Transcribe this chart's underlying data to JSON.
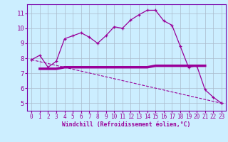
{
  "xlabel": "Windchill (Refroidissement éolien,°C)",
  "background_color": "#cceeff",
  "grid_color": "#aabbcc",
  "line_color": "#990099",
  "spine_color": "#7700aa",
  "xlim": [
    -0.5,
    23.5
  ],
  "ylim": [
    4.5,
    11.6
  ],
  "yticks": [
    5,
    6,
    7,
    8,
    9,
    10,
    11
  ],
  "xticks": [
    0,
    1,
    2,
    3,
    4,
    5,
    6,
    7,
    8,
    9,
    10,
    11,
    12,
    13,
    14,
    15,
    16,
    17,
    18,
    19,
    20,
    21,
    22,
    23
  ],
  "series1_x": [
    0,
    1,
    2,
    3,
    4,
    5,
    6,
    7,
    8,
    9,
    10,
    11,
    12,
    13,
    14,
    15,
    16,
    17,
    18,
    19,
    20,
    21,
    22,
    23
  ],
  "series1_y": [
    7.9,
    8.2,
    7.4,
    7.8,
    9.3,
    9.5,
    9.7,
    9.4,
    9.0,
    9.5,
    10.1,
    10.0,
    10.55,
    10.9,
    11.2,
    11.2,
    10.5,
    10.2,
    8.8,
    7.4,
    7.5,
    5.9,
    5.4,
    5.0
  ],
  "series2_x": [
    1,
    2,
    3,
    4,
    5,
    6,
    7,
    8,
    9,
    10,
    11,
    12,
    13,
    14,
    15,
    16,
    17,
    18,
    19,
    20,
    21
  ],
  "series2_y": [
    7.3,
    7.3,
    7.3,
    7.4,
    7.4,
    7.4,
    7.4,
    7.4,
    7.4,
    7.4,
    7.4,
    7.4,
    7.4,
    7.4,
    7.5,
    7.5,
    7.5,
    7.5,
    7.5,
    7.5,
    7.5
  ],
  "series3_x": [
    0,
    23
  ],
  "series3_y": [
    7.9,
    5.0
  ]
}
